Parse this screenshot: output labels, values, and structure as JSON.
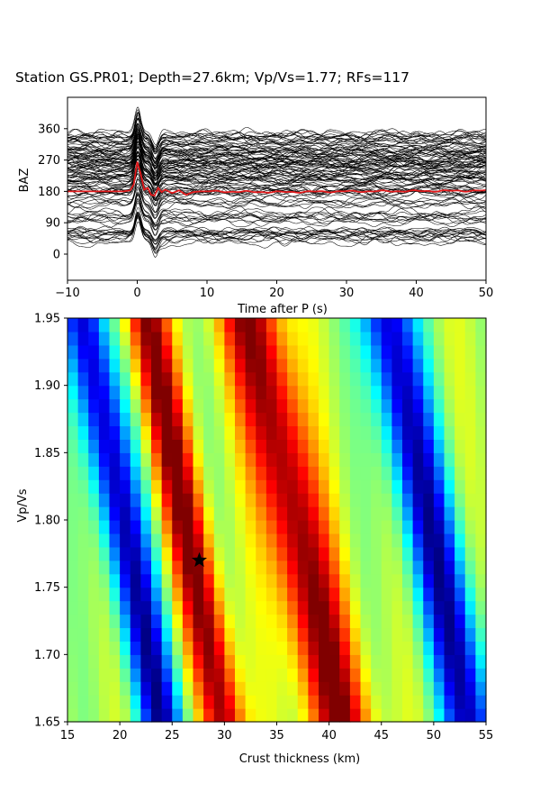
{
  "figure": {
    "title": "Station GS.PR01; Depth=27.6km; Vp/Vs=1.77; RFs=117"
  },
  "chart_data": [
    {
      "type": "line",
      "panel": "receiver-functions",
      "title": "Station GS.PR01; Depth=27.6km; Vp/Vs=1.77; RFs=117",
      "xlabel": "Time after P (s)",
      "ylabel": "BAZ",
      "xlim": [
        -10,
        50
      ],
      "ylim": [
        -75,
        450
      ],
      "xticks": [
        -10,
        0,
        10,
        20,
        30,
        40,
        50
      ],
      "yticks": [
        0,
        90,
        180,
        270,
        360
      ],
      "trace_count": 117,
      "trace_color": "#000000",
      "stack_color": "#e31a1c",
      "stack_series": {
        "name": "",
        "x": [
          -10,
          -2,
          -1,
          -0.5,
          0,
          0.5,
          1,
          1.5,
          2,
          2.5,
          3,
          3.5,
          4,
          5,
          6,
          7,
          8,
          9,
          10,
          20,
          30,
          40,
          50
        ],
        "y": [
          180,
          180,
          183,
          200,
          265,
          230,
          185,
          190,
          170,
          168,
          190,
          178,
          185,
          175,
          183,
          170,
          178,
          180,
          180,
          178,
          180,
          181,
          182
        ]
      },
      "grid": false,
      "legend": "none"
    },
    {
      "type": "heatmap",
      "panel": "h-k-stacking",
      "xlabel": "Crust thickness (km)",
      "ylabel": "Vp/Vs",
      "xlim": [
        15,
        55
      ],
      "ylim": [
        1.65,
        1.95
      ],
      "xticks": [
        15,
        20,
        25,
        30,
        35,
        40,
        45,
        50,
        55
      ],
      "yticks": [
        "1.65",
        "1.70",
        "1.75",
        "1.80",
        "1.85",
        "1.90",
        "1.95"
      ],
      "colormap": "jet",
      "grid_size": [
        40,
        30
      ],
      "best_fit": {
        "thickness_km": 27.6,
        "vp_vs": 1.77,
        "marker": "star"
      },
      "ridges": [
        {
          "kind": "low",
          "center_at_min_vpvs": 24.0,
          "center_at_max_vpvs": 16.5,
          "width_km": 2.2
        },
        {
          "kind": "high",
          "center_at_min_vpvs": 30.0,
          "center_at_max_vpvs": 22.5,
          "width_km": 2.0
        },
        {
          "kind": "high",
          "center_at_min_vpvs": 41.0,
          "center_at_max_vpvs": 32.5,
          "width_km": 3.0
        },
        {
          "kind": "low",
          "center_at_min_vpvs": 53.5,
          "center_at_max_vpvs": 45.5,
          "width_km": 2.6
        }
      ]
    }
  ]
}
